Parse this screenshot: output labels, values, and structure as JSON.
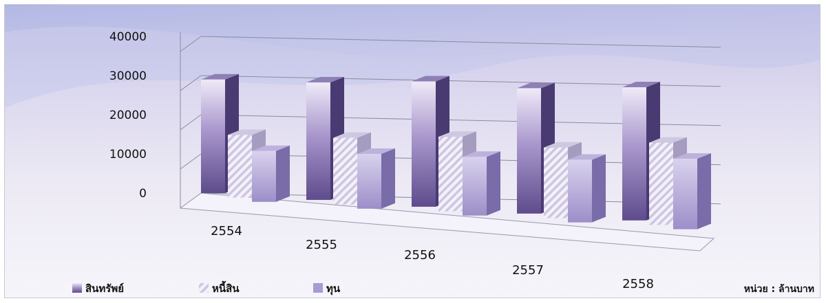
{
  "chart_data": {
    "type": "bar",
    "title": "",
    "xlabel": "",
    "ylabel": "",
    "unit_note": "หน่วย : ล้านบาท",
    "categories": [
      "2554",
      "2555",
      "2556",
      "2557",
      "2558"
    ],
    "yticks": [
      "40000",
      "30000",
      "20000",
      "10000",
      "0"
    ],
    "ylim": [
      0,
      40000
    ],
    "grid": true,
    "legend_position": "bottom-left",
    "series": [
      {
        "name": "สินทรัพย์",
        "values": [
          29000,
          30000,
          32000,
          32000,
          34000
        ],
        "color": "#7d6aa6"
      },
      {
        "name": "หนี้สิน",
        "values": [
          16000,
          17000,
          19000,
          18000,
          21000
        ],
        "color": "#e8e4f2"
      },
      {
        "name": "ทุน",
        "values": [
          13000,
          14000,
          15000,
          16000,
          18000
        ],
        "color": "#aa9dd2"
      }
    ]
  }
}
